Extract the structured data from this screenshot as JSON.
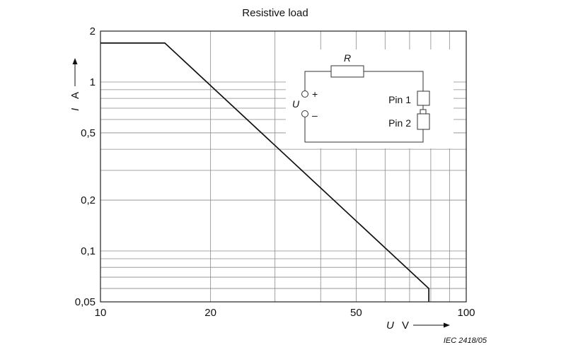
{
  "chart_data": {
    "type": "line",
    "title": "Resistive load",
    "xlabel": {
      "symbol": "U",
      "unit": "V"
    },
    "ylabel": {
      "symbol": "I",
      "unit": "A"
    },
    "x_scale": "log",
    "y_scale": "log",
    "xlim": [
      10,
      100
    ],
    "ylim": [
      0.05,
      2
    ],
    "x_ticks": [
      {
        "value": 10,
        "label": "10"
      },
      {
        "value": 20,
        "label": "20"
      },
      {
        "value": 50,
        "label": "50"
      },
      {
        "value": 100,
        "label": "100"
      }
    ],
    "y_ticks": [
      {
        "value": 0.05,
        "label": "0,05"
      },
      {
        "value": 0.1,
        "label": "0,1"
      },
      {
        "value": 0.2,
        "label": "0,2"
      },
      {
        "value": 0.5,
        "label": "0,5"
      },
      {
        "value": 1,
        "label": "1"
      },
      {
        "value": 2,
        "label": "2"
      }
    ],
    "x_grid": [
      20,
      30,
      40,
      50,
      60,
      70,
      80,
      90
    ],
    "y_grid": [
      0.06,
      0.07,
      0.08,
      0.09,
      0.1,
      0.2,
      0.3,
      0.4,
      0.5,
      0.6,
      0.7,
      0.8,
      0.9,
      1
    ],
    "grid": true,
    "series": [
      {
        "values": [
          {
            "x": 10,
            "y": 1.7
          },
          {
            "x": 15,
            "y": 1.7
          },
          {
            "x": 79,
            "y": 0.06
          },
          {
            "x": 79,
            "y": 0.05
          }
        ]
      }
    ],
    "inset": {
      "resistor_label": "R",
      "source_label": "U",
      "plus_sign": "+",
      "minus_sign": "–",
      "pin1_label": "Pin 1",
      "pin2_label": "Pin 2"
    },
    "reference": "IEC   2418/05"
  }
}
